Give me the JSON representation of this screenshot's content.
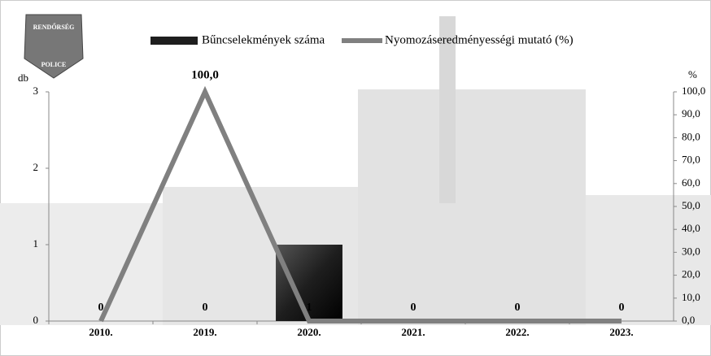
{
  "logo": {
    "top": "RENDŐRSÉG",
    "bottom": "POLICE"
  },
  "chart_data": {
    "type": "combo",
    "categories": [
      "2010.",
      "2019.",
      "2020.",
      "2021.",
      "2022.",
      "2023."
    ],
    "series": [
      {
        "name": "Bűncselekmények száma",
        "type": "bar",
        "color": "#1e1e1e",
        "values": [
          0,
          0,
          1,
          0,
          0,
          0
        ]
      },
      {
        "name": "Nyomozáseredményességi mutató (%)",
        "type": "line",
        "axis": "y2",
        "color": "#808080",
        "values": [
          0,
          100,
          0,
          0,
          0,
          0
        ],
        "value_labels": [
          null,
          "100,0",
          null,
          null,
          null,
          null
        ]
      }
    ],
    "y_label": "db",
    "y2_label": "%",
    "ylim": [
      0,
      3
    ],
    "yticks": [
      0,
      1,
      2,
      3
    ],
    "y2lim": [
      0,
      100
    ],
    "y2ticks": [
      {
        "value": 0,
        "label": "0,0"
      },
      {
        "value": 10,
        "label": "10,0"
      },
      {
        "value": 20,
        "label": "20,0"
      },
      {
        "value": 30,
        "label": "30,0"
      },
      {
        "value": 40,
        "label": "40,0"
      },
      {
        "value": 50,
        "label": "50,0"
      },
      {
        "value": 60,
        "label": "60,0"
      },
      {
        "value": 70,
        "label": "70,0"
      },
      {
        "value": 80,
        "label": "80,0"
      },
      {
        "value": 90,
        "label": "90,0"
      },
      {
        "value": 100,
        "label": "100,0"
      }
    ]
  }
}
